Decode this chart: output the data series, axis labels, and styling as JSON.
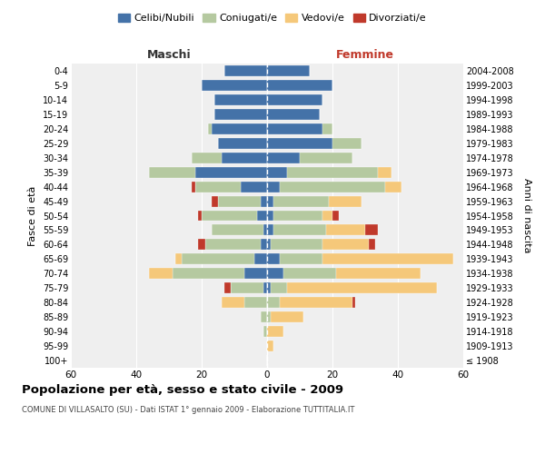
{
  "age_groups": [
    "100+",
    "95-99",
    "90-94",
    "85-89",
    "80-84",
    "75-79",
    "70-74",
    "65-69",
    "60-64",
    "55-59",
    "50-54",
    "45-49",
    "40-44",
    "35-39",
    "30-34",
    "25-29",
    "20-24",
    "15-19",
    "10-14",
    "5-9",
    "0-4"
  ],
  "birth_years": [
    "≤ 1908",
    "1909-1913",
    "1914-1918",
    "1919-1923",
    "1924-1928",
    "1929-1933",
    "1934-1938",
    "1939-1943",
    "1944-1948",
    "1949-1953",
    "1954-1958",
    "1959-1963",
    "1964-1968",
    "1969-1973",
    "1974-1978",
    "1979-1983",
    "1984-1988",
    "1989-1993",
    "1994-1998",
    "1999-2003",
    "2004-2008"
  ],
  "males": {
    "celibi": [
      0,
      0,
      0,
      0,
      0,
      1,
      7,
      4,
      2,
      1,
      3,
      2,
      8,
      22,
      14,
      15,
      17,
      16,
      16,
      20,
      13
    ],
    "coniugati": [
      0,
      0,
      1,
      2,
      7,
      10,
      22,
      22,
      17,
      16,
      17,
      13,
      14,
      14,
      9,
      0,
      1,
      0,
      0,
      0,
      0
    ],
    "vedovi": [
      0,
      0,
      0,
      0,
      7,
      0,
      7,
      2,
      0,
      0,
      0,
      0,
      0,
      0,
      0,
      0,
      0,
      0,
      0,
      0,
      0
    ],
    "divorziati": [
      0,
      0,
      0,
      0,
      0,
      2,
      0,
      0,
      2,
      0,
      1,
      2,
      1,
      0,
      0,
      0,
      0,
      0,
      0,
      0,
      0
    ]
  },
  "females": {
    "nubili": [
      0,
      0,
      0,
      0,
      0,
      1,
      5,
      4,
      1,
      2,
      2,
      2,
      4,
      6,
      10,
      20,
      17,
      16,
      17,
      20,
      13
    ],
    "coniugate": [
      0,
      0,
      0,
      1,
      4,
      5,
      16,
      13,
      16,
      16,
      15,
      17,
      32,
      28,
      16,
      9,
      3,
      0,
      0,
      0,
      0
    ],
    "vedove": [
      0,
      2,
      5,
      10,
      22,
      46,
      26,
      40,
      14,
      12,
      3,
      10,
      5,
      4,
      0,
      0,
      0,
      0,
      0,
      0,
      0
    ],
    "divorziate": [
      0,
      0,
      0,
      0,
      1,
      0,
      0,
      0,
      2,
      4,
      2,
      0,
      0,
      0,
      0,
      0,
      0,
      0,
      0,
      0,
      0
    ]
  },
  "colors": {
    "celibi": "#4472a8",
    "coniugati": "#b5c9a0",
    "vedovi": "#f5c87a",
    "divorziati": "#c0392b"
  },
  "xlim": 60,
  "title": "Popolazione per età, sesso e stato civile - 2009",
  "subtitle": "COMUNE DI VILLASALTO (SU) - Dati ISTAT 1° gennaio 2009 - Elaborazione TUTTITALIA.IT",
  "ylabel_left": "Fasce di età",
  "ylabel_right": "Anni di nascita",
  "xlabel_left": "Maschi",
  "xlabel_right": "Femmine",
  "legend_labels": [
    "Celibi/Nubili",
    "Coniugati/e",
    "Vedovi/e",
    "Divorziati/e"
  ],
  "bg_color": "#efefef"
}
